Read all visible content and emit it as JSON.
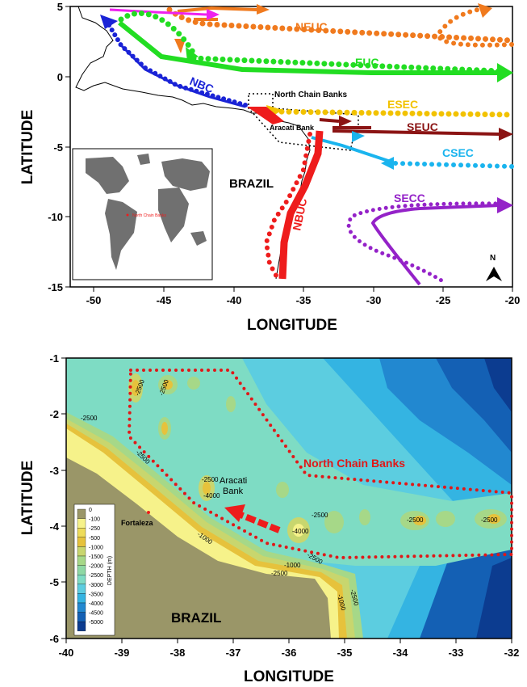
{
  "top_map": {
    "x_ticks": [
      "-50",
      "-45",
      "-40",
      "-35",
      "-30",
      "-25",
      "-20"
    ],
    "y_ticks": [
      "5",
      "0",
      "-5",
      "-10",
      "-15"
    ],
    "xlabel": "LONGITUDE",
    "ylabel": "LATITUDE",
    "currents": [
      {
        "label": "NEUC",
        "color": "#f07a1e"
      },
      {
        "label": "EUC",
        "color": "#22dd22"
      },
      {
        "label": "NBC",
        "color": "#1a23d6"
      },
      {
        "label": "ESEC",
        "color": "#f2c200"
      },
      {
        "label": "SEUC",
        "color": "#8b1414"
      },
      {
        "label": "CSEC",
        "color": "#1ab4ee"
      },
      {
        "label": "SECC",
        "color": "#9422c8"
      },
      {
        "label": "NBUC",
        "color": "#ee1c1c"
      }
    ],
    "region_labels": {
      "north_chain": "North Chain Banks",
      "aracati": "Aracati Bank",
      "brazil": "BRAZIL",
      "north": "N"
    },
    "inset_label": "North Chain Banks"
  },
  "bottom_map": {
    "x_ticks": [
      "-40",
      "-39",
      "-38",
      "-37",
      "-36",
      "-35",
      "-34",
      "-33",
      "-32"
    ],
    "y_ticks": [
      "-1",
      "-2",
      "-3",
      "-4",
      "-5",
      "-6"
    ],
    "xlabel": "LONGITUDE",
    "ylabel": "LATITUDE",
    "labels": {
      "north_chain": "North Chain Banks",
      "aracati_1": "Aracati",
      "aracati_2": "Bank",
      "fortaleza": "Fortaleza",
      "brazil": "BRAZIL"
    },
    "contour_label": "-2500",
    "contour_1000": "-1000",
    "contour_4000": "-4000",
    "legend": {
      "title": "DEPTH (m)",
      "levels": [
        "0",
        "-100",
        "-250",
        "-500",
        "-1000",
        "-1500",
        "-2000",
        "-2500",
        "-3000",
        "-3500",
        "-4000",
        "-4500",
        "-5000"
      ],
      "colors": [
        "#9a9668",
        "#f6f28a",
        "#eedc5a",
        "#e6c23c",
        "#c8d66e",
        "#a6d888",
        "#8ed8a4",
        "#7edcc4",
        "#5ccde0",
        "#34b4e2",
        "#2288d0",
        "#1460b4",
        "#0c3c90"
      ]
    }
  }
}
